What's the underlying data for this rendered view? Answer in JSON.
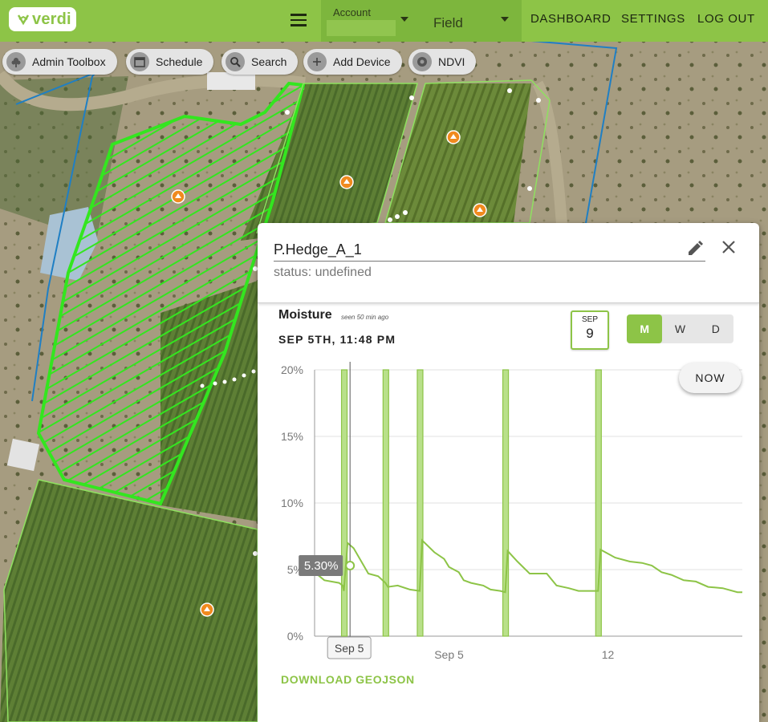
{
  "app": {
    "logo_text": "verdi"
  },
  "topbar": {
    "account_label": "Account",
    "field_value": "Field",
    "nav": [
      "DASHBOARD",
      "SETTINGS",
      "LOG OUT"
    ]
  },
  "toolbar": [
    {
      "label": "Admin Toolbox",
      "icon": "flower-icon"
    },
    {
      "label": "Schedule",
      "icon": "calendar-icon"
    },
    {
      "label": "Search",
      "icon": "search-icon"
    },
    {
      "label": "Add Device",
      "icon": "plus-icon"
    },
    {
      "label": "NDVI",
      "icon": "gear-icon"
    }
  ],
  "panel": {
    "device_name": "P.Hedge_A_1",
    "status": "status: undefined",
    "metric_title": "Moisture",
    "seen": "seen 50 min ago",
    "timestamp": "SEP 5TH, 11:48 PM",
    "calendar": {
      "month": "SEP",
      "day": "9"
    },
    "segments": [
      "M",
      "W",
      "D"
    ],
    "active_segment": "M",
    "now_label": "NOW",
    "download_label": "DOWNLOAD GEOJSON"
  },
  "colors": {
    "brand": "#8dc447",
    "line": "#8dc447",
    "field_outline": "#33e61f",
    "boundary": "#1f7fc4"
  },
  "chart_data": {
    "type": "line",
    "ylabel": "",
    "xlabel": "",
    "ylim": [
      0,
      20
    ],
    "yticks": [
      "0%",
      "5%",
      "10%",
      "15%",
      "20%"
    ],
    "xticks": [
      {
        "x": 5.5,
        "label": "Sep 5"
      },
      {
        "x": 12,
        "label": "12"
      }
    ],
    "xlim": [
      0,
      17.5
    ],
    "tooltip": {
      "x": 1.45,
      "y": 5.3,
      "label": "5.30%"
    },
    "cursor_label": "Sep 5",
    "irrigation_events": [
      1.2,
      2.9,
      4.3,
      7.8,
      11.6
    ],
    "series": [
      {
        "name": "Moisture",
        "x": [
          0,
          0.4,
          1.0,
          1.15,
          1.2,
          1.35,
          1.6,
          2.2,
          2.6,
          2.9,
          3.0,
          3.4,
          3.9,
          4.3,
          4.4,
          4.9,
          5.3,
          5.5,
          5.9,
          6.1,
          6.4,
          6.9,
          7.2,
          7.6,
          7.8,
          7.9,
          8.3,
          8.8,
          9.5,
          9.9,
          10.4,
          10.8,
          11.2,
          11.6,
          11.7,
          12.3,
          12.9,
          13.4,
          13.8,
          14.2,
          14.6,
          15.1,
          15.6,
          16.1,
          16.7,
          17.3,
          17.5
        ],
        "y": [
          4.8,
          4.2,
          4.0,
          3.8,
          3.4,
          7.0,
          6.6,
          4.7,
          4.5,
          4.0,
          3.7,
          3.8,
          3.5,
          3.4,
          7.2,
          6.3,
          5.8,
          5.2,
          4.8,
          4.2,
          4.0,
          3.8,
          3.5,
          3.4,
          3.3,
          6.4,
          5.6,
          4.7,
          4.7,
          3.8,
          3.6,
          3.4,
          3.4,
          3.4,
          6.5,
          5.9,
          5.6,
          5.5,
          5.3,
          4.8,
          4.6,
          4.2,
          4.1,
          3.7,
          3.6,
          3.3,
          3.3
        ]
      }
    ]
  }
}
